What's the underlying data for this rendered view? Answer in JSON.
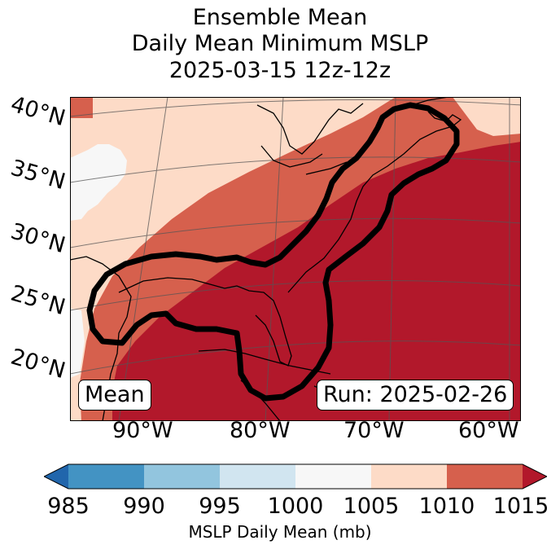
{
  "title": {
    "line1": "Ensemble Mean",
    "line2": "Daily Mean Minimum MSLP",
    "line3": "2025-03-15 12z-12z"
  },
  "lat_labels": [
    "40°N",
    "35°N",
    "30°N",
    "25°N",
    "20°N"
  ],
  "lon_labels": [
    "90°W",
    "80°W",
    "70°W",
    "60°W"
  ],
  "mean_box": "Mean",
  "run_box": "Run: 2025-02-26",
  "colorbar": {
    "ticks": [
      "985",
      "990",
      "995",
      "1000",
      "1005",
      "1010",
      "1015"
    ],
    "colors": [
      "#2166ac",
      "#4393c3",
      "#92c5de",
      "#d1e5f0",
      "#f7f7f7",
      "#fddbc7",
      "#d6604d",
      "#b2182b"
    ],
    "label": "MSLP Daily Mean (mb)"
  }
}
